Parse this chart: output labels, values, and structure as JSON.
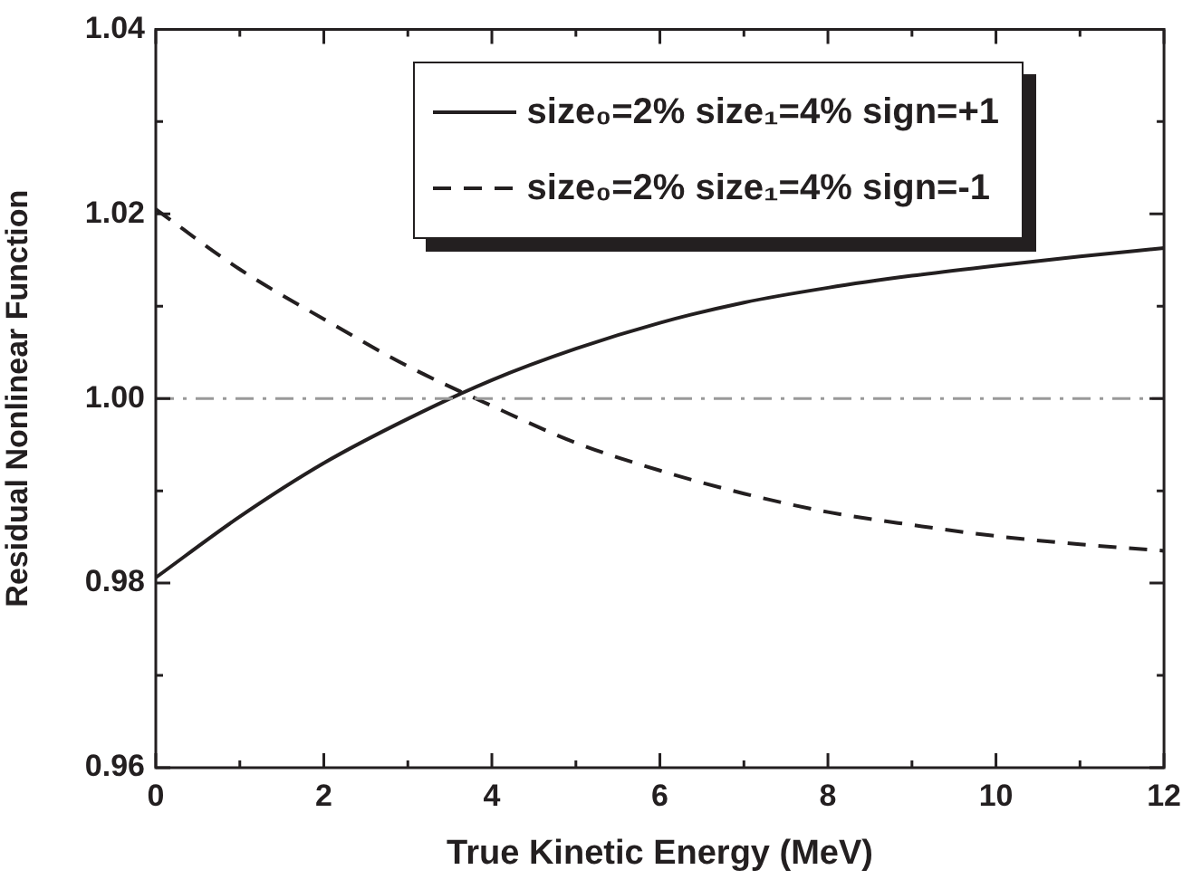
{
  "chart_data": {
    "type": "line",
    "xlabel": "True Kinetic Energy (MeV)",
    "ylabel": "Residual Nonlinear Function",
    "x": [
      0,
      1,
      2,
      3,
      4,
      5,
      6,
      7,
      8,
      9,
      10,
      11,
      12
    ],
    "series": [
      {
        "name": "size₀=2% size₁=4% sign=+1",
        "color": "#231f20",
        "line_style": "solid",
        "values": [
          0.9806,
          0.9872,
          0.993,
          0.9978,
          1.002,
          1.0054,
          1.0082,
          1.0104,
          1.012,
          1.0133,
          1.0144,
          1.0154,
          1.0163
        ]
      },
      {
        "name": "size₀=2% size₁=4% sign=-1",
        "color": "#231f20",
        "line_style": "dashed",
        "values": [
          1.0205,
          1.014,
          1.0086,
          1.0035,
          0.9992,
          0.9952,
          0.9922,
          0.9897,
          0.9877,
          0.9863,
          0.9851,
          0.9842,
          0.9835
        ]
      }
    ],
    "xlim": [
      0,
      12
    ],
    "xticks": [
      0,
      {
        "value": 1,
        "label": null
      },
      2,
      {
        "value": 3,
        "label": null
      },
      4,
      {
        "value": 5,
        "label": null
      },
      6,
      {
        "value": 7,
        "label": null
      },
      8,
      {
        "value": 9,
        "label": null
      },
      10,
      {
        "value": 11,
        "label": null
      },
      12
    ],
    "ylim": [
      0.96,
      1.04
    ],
    "yticks": [
      {
        "value": 0.96,
        "label": "0.96"
      },
      {
        "value": 0.97,
        "label": null
      },
      {
        "value": 0.98,
        "label": "0.98"
      },
      {
        "value": 0.99,
        "label": null
      },
      {
        "value": 1.0,
        "label": "1.00"
      },
      {
        "value": 1.01,
        "label": null
      },
      {
        "value": 1.02,
        "label": "1.02"
      },
      {
        "value": 1.03,
        "label": null
      },
      {
        "value": 1.04,
        "label": "1.04"
      }
    ],
    "ref_lines": [
      {
        "axis": "y",
        "value": 1.0,
        "label": null,
        "color": "#999999",
        "line_style": "dashdot"
      }
    ],
    "grid": false,
    "legend": "top right",
    "marker": "none"
  }
}
